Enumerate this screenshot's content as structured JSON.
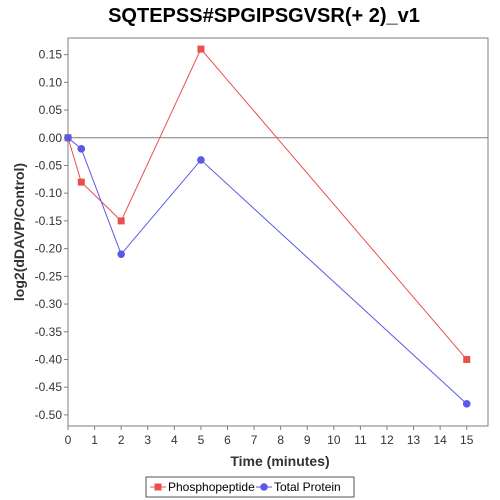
{
  "chart_data": {
    "type": "line",
    "title": "SQTEPSS#SPGIPSGVSR(+ 2)_v1",
    "xlabel": "Time (minutes)",
    "ylabel": "log2(dDAVP/Control)",
    "xlim": [
      0,
      15.8
    ],
    "ylim": [
      -0.52,
      0.18
    ],
    "x_ticks": [
      0,
      1,
      2,
      3,
      4,
      5,
      6,
      7,
      8,
      9,
      10,
      11,
      12,
      13,
      14,
      15
    ],
    "y_ticks": [
      0.15,
      0.1,
      0.05,
      0.0,
      -0.05,
      -0.1,
      -0.15,
      -0.2,
      -0.25,
      -0.3,
      -0.35,
      -0.4,
      -0.45,
      -0.5
    ],
    "y_tick_labels": [
      "0.15",
      "0.10",
      "0.05",
      "0.00",
      "-0.05",
      "-0.10",
      "-0.15",
      "-0.20",
      "-0.25",
      "-0.30",
      "-0.35",
      "-0.40",
      "-0.45",
      "-0.50"
    ],
    "zero_line": true,
    "grid": false,
    "legend_position": "bottom",
    "series": [
      {
        "name": "Phosphopeptide",
        "color": "#e8504f",
        "marker": "square",
        "points": [
          {
            "x": 0,
            "y": 0.0
          },
          {
            "x": 0.5,
            "y": -0.08
          },
          {
            "x": 2,
            "y": -0.15
          },
          {
            "x": 5,
            "y": 0.16
          },
          {
            "x": 15,
            "y": -0.4
          }
        ]
      },
      {
        "name": "Total Protein",
        "color": "#5a5ae8",
        "marker": "circle",
        "points": [
          {
            "x": 0,
            "y": 0.0
          },
          {
            "x": 0.5,
            "y": -0.02
          },
          {
            "x": 2,
            "y": -0.21
          },
          {
            "x": 5,
            "y": -0.04
          },
          {
            "x": 15,
            "y": -0.48
          }
        ]
      }
    ]
  }
}
